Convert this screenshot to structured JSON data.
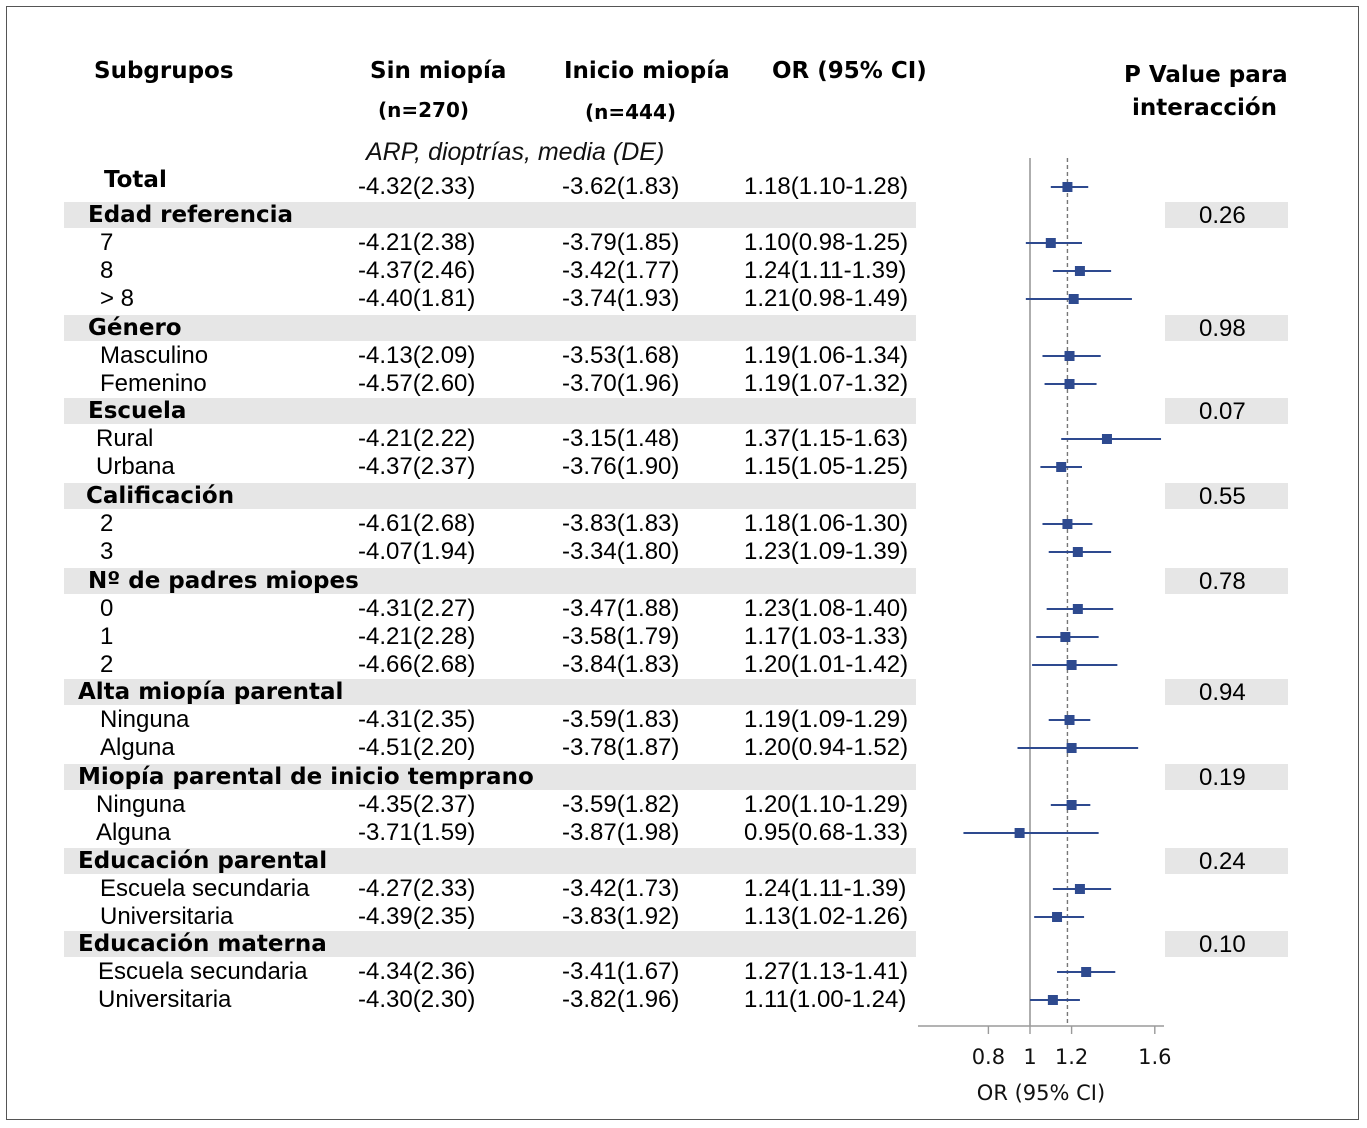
{
  "headers": {
    "subgroups": "Subgrupos",
    "no_myopia": "Sin miopía",
    "no_myopia_n": "(n=270)",
    "onset_myopia": "Inicio miopía",
    "onset_myopia_n": "(n=444)",
    "or": "OR (95% CI)",
    "pvalue_l1": "P Value para",
    "pvalue_l2": "interacción",
    "note": "ARP, dioptrías, media (DE)"
  },
  "groups": [
    {
      "name": "Total",
      "pvalue": "",
      "band": false,
      "rows": [
        {
          "label": "",
          "a": "-4.32(2.33)",
          "b": "-3.62(1.83)",
          "or": "1.18(1.10-1.28)"
        }
      ]
    },
    {
      "name": "Edad referencia",
      "pvalue": "0.26",
      "band": true,
      "rows": [
        {
          "label": "7",
          "a": "-4.21(2.38)",
          "b": "-3.79(1.85)",
          "or": "1.10(0.98-1.25)"
        },
        {
          "label": "8",
          "a": "-4.37(2.46)",
          "b": "-3.42(1.77)",
          "or": "1.24(1.11-1.39)"
        },
        {
          "label": "> 8",
          "a": "-4.40(1.81)",
          "b": "-3.74(1.93)",
          "or": "1.21(0.98-1.49)"
        }
      ]
    },
    {
      "name": "Género",
      "pvalue": "0.98",
      "band": true,
      "rows": [
        {
          "label": "Masculino",
          "a": "-4.13(2.09)",
          "b": "-3.53(1.68)",
          "or": "1.19(1.06-1.34)"
        },
        {
          "label": "Femenino",
          "a": "-4.57(2.60)",
          "b": "-3.70(1.96)",
          "or": "1.19(1.07-1.32)"
        }
      ]
    },
    {
      "name": "Escuela",
      "pvalue": "0.07",
      "band": true,
      "rows": [
        {
          "label": "Rural",
          "a": "-4.21(2.22)",
          "b": "-3.15(1.48)",
          "or": "1.37(1.15-1.63)"
        },
        {
          "label": "Urbana",
          "a": "-4.37(2.37)",
          "b": "-3.76(1.90)",
          "or": "1.15(1.05-1.25)"
        }
      ]
    },
    {
      "name": "Calificación",
      "pvalue": "0.55",
      "band": true,
      "rows": [
        {
          "label": "2",
          "a": "-4.61(2.68)",
          "b": "-3.83(1.83)",
          "or": "1.18(1.06-1.30)"
        },
        {
          "label": "3",
          "a": "-4.07(1.94)",
          "b": "-3.34(1.80)",
          "or": "1.23(1.09-1.39)"
        }
      ]
    },
    {
      "name": "Nº de padres miopes",
      "pvalue": "0.78",
      "band": true,
      "rows": [
        {
          "label": "0",
          "a": "-4.31(2.27)",
          "b": "-3.47(1.88)",
          "or": "1.23(1.08-1.40)"
        },
        {
          "label": "1",
          "a": "-4.21(2.28)",
          "b": "-3.58(1.79)",
          "or": "1.17(1.03-1.33)"
        },
        {
          "label": "2",
          "a": "-4.66(2.68)",
          "b": "-3.84(1.83)",
          "or": "1.20(1.01-1.42)"
        }
      ]
    },
    {
      "name": "Alta miopía parental",
      "pvalue": "0.94",
      "band": true,
      "rows": [
        {
          "label": "Ninguna",
          "a": "-4.31(2.35)",
          "b": "-3.59(1.83)",
          "or": "1.19(1.09-1.29)"
        },
        {
          "label": "Alguna",
          "a": "-4.51(2.20)",
          "b": "-3.78(1.87)",
          "or": "1.20(0.94-1.52)"
        }
      ]
    },
    {
      "name": "Miopía parental de inicio temprano",
      "pvalue": "0.19",
      "band": true,
      "rows": [
        {
          "label": "Ninguna",
          "a": "-4.35(2.37)",
          "b": "-3.59(1.82)",
          "or": "1.20(1.10-1.29)"
        },
        {
          "label": "Alguna",
          "a": "-3.71(1.59)",
          "b": "-3.87(1.98)",
          "or": "0.95(0.68-1.33)"
        }
      ]
    },
    {
      "name": "Educación parental",
      "pvalue": "0.24",
      "band": true,
      "rows": [
        {
          "label": "Escuela secundaria",
          "a": "-4.27(2.33)",
          "b": "-3.42(1.73)",
          "or": "1.24(1.11-1.39)"
        },
        {
          "label": "Universitaria",
          "a": "-4.39(2.35)",
          "b": "-3.83(1.92)",
          "or": "1.13(1.02-1.26)"
        }
      ]
    },
    {
      "name": "Educación materna",
      "pvalue": "0.10",
      "band": true,
      "rows": [
        {
          "label": "Escuela secundaria",
          "a": "-4.34(2.36)",
          "b": "-3.41(1.67)",
          "or": "1.27(1.13-1.41)"
        },
        {
          "label": "Universitaria",
          "a": "-4.30(2.30)",
          "b": "-3.82(1.96)",
          "or": "1.11(1.00-1.24)"
        }
      ]
    }
  ],
  "chart_data": {
    "type": "scatter",
    "xlabel": "OR (95% CI)",
    "xticks": [
      "0.8",
      "1",
      "1.2",
      "1.6"
    ],
    "reference_line": 1,
    "overall_line": 1.18,
    "marker_color": "#2e4a8f",
    "points": [
      {
        "or": 1.18,
        "lo": 1.1,
        "hi": 1.28
      },
      {
        "or": 1.1,
        "lo": 0.98,
        "hi": 1.25
      },
      {
        "or": 1.24,
        "lo": 1.11,
        "hi": 1.39
      },
      {
        "or": 1.21,
        "lo": 0.98,
        "hi": 1.49
      },
      {
        "or": 1.19,
        "lo": 1.06,
        "hi": 1.34
      },
      {
        "or": 1.19,
        "lo": 1.07,
        "hi": 1.32
      },
      {
        "or": 1.37,
        "lo": 1.15,
        "hi": 1.63
      },
      {
        "or": 1.15,
        "lo": 1.05,
        "hi": 1.25
      },
      {
        "or": 1.18,
        "lo": 1.06,
        "hi": 1.3
      },
      {
        "or": 1.23,
        "lo": 1.09,
        "hi": 1.39
      },
      {
        "or": 1.23,
        "lo": 1.08,
        "hi": 1.4
      },
      {
        "or": 1.17,
        "lo": 1.03,
        "hi": 1.33
      },
      {
        "or": 1.2,
        "lo": 1.01,
        "hi": 1.42
      },
      {
        "or": 1.19,
        "lo": 1.09,
        "hi": 1.29
      },
      {
        "or": 1.2,
        "lo": 0.94,
        "hi": 1.52
      },
      {
        "or": 1.2,
        "lo": 1.1,
        "hi": 1.29
      },
      {
        "or": 0.95,
        "lo": 0.68,
        "hi": 1.33
      },
      {
        "or": 1.24,
        "lo": 1.11,
        "hi": 1.39
      },
      {
        "or": 1.13,
        "lo": 1.02,
        "hi": 1.26
      },
      {
        "or": 1.27,
        "lo": 1.13,
        "hi": 1.41
      },
      {
        "or": 1.11,
        "lo": 1.0,
        "hi": 1.24
      }
    ]
  }
}
